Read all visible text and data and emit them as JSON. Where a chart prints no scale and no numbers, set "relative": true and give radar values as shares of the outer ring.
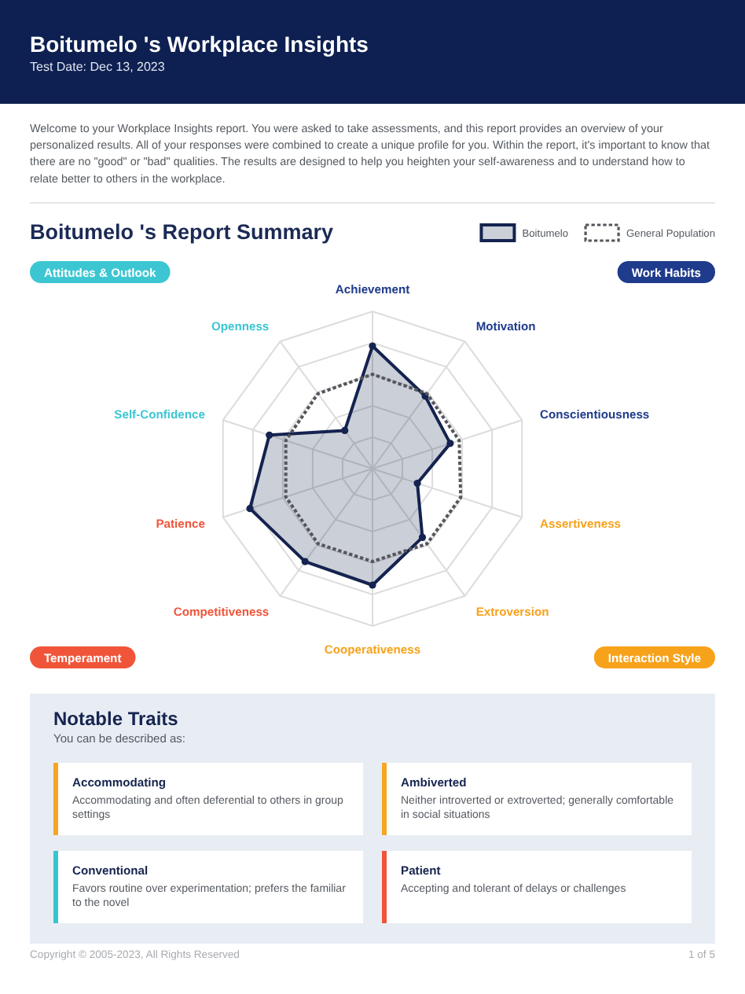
{
  "chart_data": {
    "type": "radar",
    "title": "Boitumelo 's Report Summary",
    "categories": [
      "Achievement",
      "Motivation",
      "Conscientiousness",
      "Assertiveness",
      "Extroversion",
      "Cooperativeness",
      "Competitiveness",
      "Patience",
      "Self-Confidence",
      "Openness"
    ],
    "relative": true,
    "grid": true,
    "legend": "top right",
    "series": [
      {
        "name": "Boitumelo",
        "color": "#14234f",
        "marker": "circle",
        "line_style": "solid",
        "values": [
          0.78,
          0.57,
          0.52,
          0.3,
          0.54,
          0.74,
          0.73,
          0.82,
          0.69,
          0.3
        ]
      },
      {
        "name": "General Population",
        "color": "#55565c",
        "marker": "none",
        "line_style": "dotted",
        "values": [
          0.6,
          0.59,
          0.58,
          0.59,
          0.59,
          0.59,
          0.59,
          0.58,
          0.58,
          0.59
        ]
      }
    ],
    "annotations": [
      "Boitumelo 's Workplace Insights",
      "Test Date: Dec 13, 2023",
      "Welcome to your Workplace Insights report. You were asked to take assessments, and this report provides an overview of your personalized results. All of your responses were combined to create a unique profile for you. Within the report, it's important to know that there are no \"good\" or \"bad\" qualities. The results are designed to help you heighten your self-awareness and to understand how to relate better to others in the workplace.",
      "Attitudes & Outlook",
      "Work Habits",
      "Temperament",
      "Interaction Style",
      "Notable Traits",
      "You can be described as:",
      "Accommodating",
      "Accommodating and often deferential to others in group settings",
      "Ambiverted",
      "Neither introverted or extroverted; generally comfortable in social situations",
      "Conventional",
      "Favors routine over experimentation; prefers the familiar to the novel",
      "Patient",
      "Accepting and tolerant of delays or challenges",
      "Copyright © 2005-2023, All Rights Reserved",
      "1 of 5"
    ]
  }
}
